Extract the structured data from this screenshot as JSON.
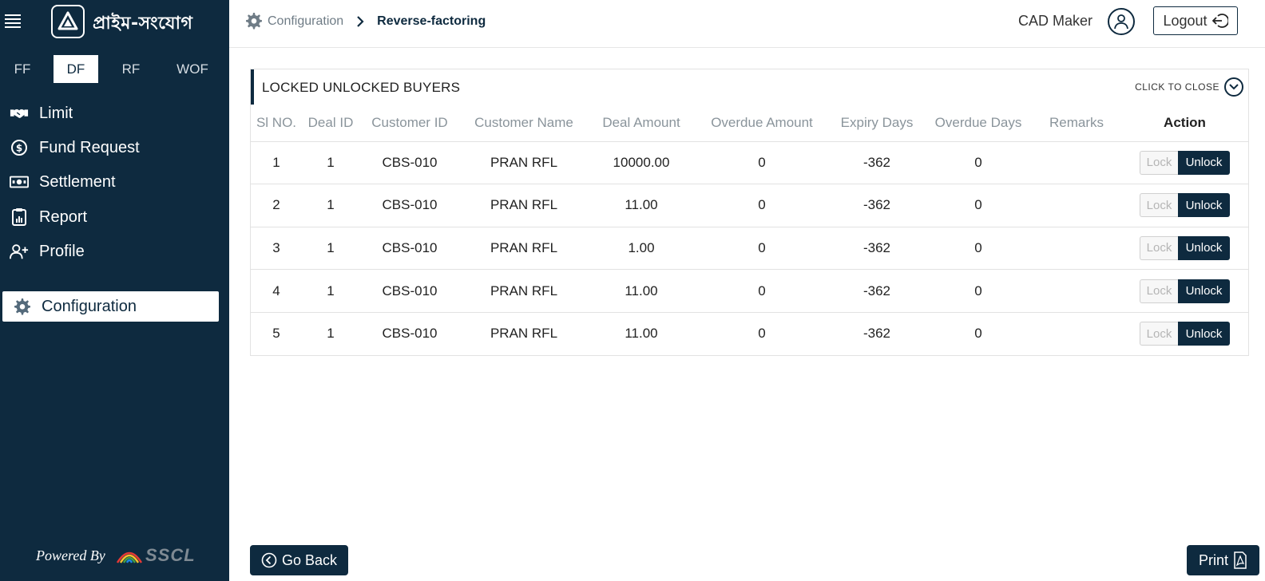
{
  "brand": {
    "app_name": "প্রাইম-সংযোগ",
    "powered_by": "Powered By",
    "vendor": "SSCL"
  },
  "tabs": [
    {
      "label": "FF"
    },
    {
      "label": "DF",
      "active": true
    },
    {
      "label": "RF"
    },
    {
      "label": "WOF"
    }
  ],
  "menu": [
    {
      "label": "Limit",
      "icon": "handshake-icon"
    },
    {
      "label": "Fund Request",
      "icon": "dollar-circle-icon"
    },
    {
      "label": "Settlement",
      "icon": "banknote-icon"
    },
    {
      "label": "Report",
      "icon": "clipboard-chart-icon"
    },
    {
      "label": "Profile",
      "icon": "user-plus-icon"
    },
    {
      "label": "Configuration",
      "icon": "gear-icon",
      "active": true
    }
  ],
  "header": {
    "breadcrumb_root": "Configuration",
    "breadcrumb_current": "Reverse-factoring",
    "user_role": "CAD Maker",
    "logout_label": "Logout"
  },
  "panel": {
    "title": "LOCKED UNLOCKED BUYERS",
    "close_label": "CLICK TO CLOSE"
  },
  "table": {
    "columns": [
      "Sl NO.",
      "Deal ID",
      "Customer ID",
      "Customer Name",
      "Deal Amount",
      "Overdue Amount",
      "Expiry Days",
      "Overdue Days",
      "Remarks",
      "Action"
    ],
    "lock_label": "Lock",
    "unlock_label": "Unlock",
    "rows": [
      {
        "sl": "1",
        "deal_id": "1",
        "customer_id": "CBS-010",
        "customer_name": "PRAN RFL",
        "deal_amount": "10000.00",
        "overdue_amount": "0",
        "expiry_days": "-362",
        "overdue_days": "0",
        "remarks": ""
      },
      {
        "sl": "2",
        "deal_id": "1",
        "customer_id": "CBS-010",
        "customer_name": "PRAN RFL",
        "deal_amount": "11.00",
        "overdue_amount": "0",
        "expiry_days": "-362",
        "overdue_days": "0",
        "remarks": ""
      },
      {
        "sl": "3",
        "deal_id": "1",
        "customer_id": "CBS-010",
        "customer_name": "PRAN RFL",
        "deal_amount": "1.00",
        "overdue_amount": "0",
        "expiry_days": "-362",
        "overdue_days": "0",
        "remarks": ""
      },
      {
        "sl": "4",
        "deal_id": "1",
        "customer_id": "CBS-010",
        "customer_name": "PRAN RFL",
        "deal_amount": "11.00",
        "overdue_amount": "0",
        "expiry_days": "-362",
        "overdue_days": "0",
        "remarks": ""
      },
      {
        "sl": "5",
        "deal_id": "1",
        "customer_id": "CBS-010",
        "customer_name": "PRAN RFL",
        "deal_amount": "11.00",
        "overdue_amount": "0",
        "expiry_days": "-362",
        "overdue_days": "0",
        "remarks": ""
      }
    ]
  },
  "footer": {
    "go_back_label": "Go Back",
    "print_label": "Print"
  },
  "colors": {
    "primary": "#0e2a3f",
    "muted_text": "#8a949b",
    "border": "#e2e2e2"
  }
}
